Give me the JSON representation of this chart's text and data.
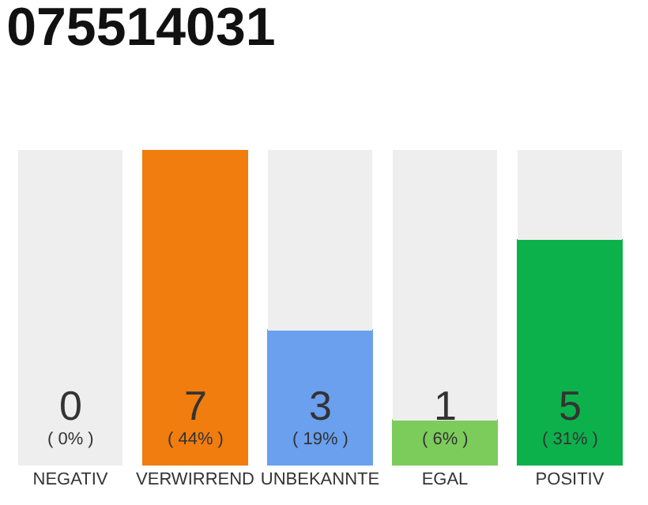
{
  "chart_data": {
    "type": "bar",
    "title": "075514031",
    "categories": [
      "NEGATIV",
      "VERWIRREND",
      "UNBEKANNTE",
      "EGAL",
      "POSITIV"
    ],
    "stacked": true,
    "ylim": [
      0,
      7
    ],
    "tick_labels": "x",
    "series": [
      {
        "colors": [
          "#555555",
          "#f07d0e",
          "#6aa0ee",
          "#7ccc5c",
          "#0db14b"
        ],
        "values": [
          0,
          7,
          3,
          1,
          5
        ],
        "value_labels": [
          "0\n( 0% )",
          "7\n( 44% )",
          "3\n( 19% )",
          "1\n( 6% )",
          "5\n( 31% )"
        ]
      },
      {
        "color": "#eeeeee",
        "values": [
          7,
          0,
          4,
          6,
          2
        ]
      }
    ]
  }
}
